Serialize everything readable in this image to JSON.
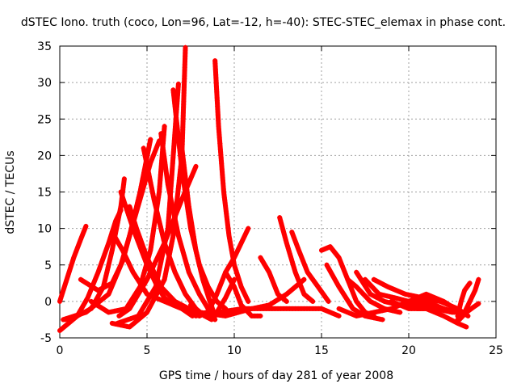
{
  "chart_data": {
    "type": "scatter",
    "title": "dSTEC Iono. truth (coco, Lon=96, Lat=-12, h=-40): STEC-STEC_elemax in phase cont.",
    "xlabel": "GPS time / hours of day 281 of year 2008",
    "ylabel": "dSTEC  / TECUs",
    "xlim": [
      0,
      25
    ],
    "ylim": [
      -5,
      35
    ],
    "xticks": [
      0,
      5,
      10,
      15,
      20,
      25
    ],
    "yticks": [
      -5,
      0,
      5,
      10,
      15,
      20,
      25,
      30,
      35
    ],
    "grid": true,
    "legend": "none",
    "marker": "plus",
    "color": "#ff0000",
    "series": [
      {
        "x": [
          0.0,
          0.4,
          0.8,
          1.2,
          1.5
        ],
        "y": [
          0.0,
          3.0,
          6.0,
          8.5,
          10.3
        ]
      },
      {
        "x": [
          0.0,
          0.5,
          1.0,
          1.6,
          2.2,
          2.8,
          3.2,
          3.5
        ],
        "y": [
          -4.0,
          -3.0,
          -2.0,
          0.5,
          4.0,
          8.0,
          11.0,
          12.5
        ]
      },
      {
        "x": [
          0.3,
          1.0,
          1.8,
          2.5,
          3.0,
          3.5,
          3.7
        ],
        "y": [
          -2.5,
          -2.0,
          -1.0,
          2.0,
          7.0,
          13.0,
          16.8
        ]
      },
      {
        "x": [
          0.2,
          1.5,
          2.8,
          3.5,
          4.0,
          4.6,
          5.2
        ],
        "y": [
          -2.5,
          -1.5,
          1.0,
          5.0,
          9.0,
          15.0,
          22.2
        ]
      },
      {
        "x": [
          1.2,
          2.2,
          3.0,
          3.6,
          4.0,
          4.6,
          5.2,
          5.7
        ],
        "y": [
          3.0,
          1.5,
          2.5,
          5.5,
          9.0,
          14.0,
          19.0,
          22.0
        ]
      },
      {
        "x": [
          1.8,
          2.8,
          3.8,
          4.6,
          5.2,
          5.7,
          6.0
        ],
        "y": [
          0.0,
          -1.5,
          -1.0,
          2.0,
          7.0,
          15.0,
          24.0
        ]
      },
      {
        "x": [
          3.0,
          4.0,
          5.0,
          6.0,
          6.5,
          7.0,
          7.2
        ],
        "y": [
          -3.0,
          -3.5,
          -1.5,
          3.0,
          9.0,
          20.0,
          34.8
        ]
      },
      {
        "x": [
          3.3,
          4.5,
          5.5,
          6.2,
          6.8
        ],
        "y": [
          -3.0,
          -2.0,
          2.0,
          10.0,
          29.8
        ]
      },
      {
        "x": [
          3.0,
          3.6,
          4.2,
          5.0,
          6.0,
          7.0,
          7.8,
          8.4
        ],
        "y": [
          9.5,
          7.0,
          4.0,
          1.0,
          0.0,
          -1.0,
          -2.0,
          -1.5
        ]
      },
      {
        "x": [
          3.5,
          4.2,
          5.0,
          5.6,
          6.0,
          6.5,
          7.0,
          7.6
        ],
        "y": [
          15.0,
          10.0,
          5.0,
          2.0,
          0.5,
          -0.5,
          -1.0,
          -2.0
        ]
      },
      {
        "x": [
          4.8,
          5.4,
          6.0,
          6.6,
          7.2,
          7.8,
          8.3,
          8.7
        ],
        "y": [
          21.0,
          14.0,
          8.0,
          4.0,
          1.0,
          -1.0,
          -2.0,
          -2.5
        ]
      },
      {
        "x": [
          5.8,
          6.2,
          6.8,
          7.4,
          8.0,
          8.5,
          8.9
        ],
        "y": [
          23.0,
          16.0,
          9.0,
          4.0,
          1.0,
          -1.0,
          -2.5
        ]
      },
      {
        "x": [
          6.5,
          7.0,
          7.5,
          8.0,
          8.5,
          9.0,
          9.5
        ],
        "y": [
          29.0,
          18.0,
          10.0,
          5.0,
          2.0,
          0.0,
          -1.0
        ]
      },
      {
        "x": [
          7.0,
          7.4,
          7.8,
          8.2,
          8.6,
          8.9
        ],
        "y": [
          21.0,
          13.0,
          7.0,
          3.0,
          0.0,
          -2.0
        ]
      },
      {
        "x": [
          4.0,
          4.4,
          5.0,
          5.8,
          6.6,
          7.4,
          8.0
        ],
        "y": [
          13.0,
          10.0,
          6.0,
          2.0,
          0.0,
          -1.0,
          -2.0
        ]
      },
      {
        "x": [
          3.4,
          4.0,
          5.0,
          6.0,
          7.0,
          7.8
        ],
        "y": [
          -2.0,
          -1.0,
          3.0,
          8.0,
          14.0,
          18.5
        ]
      },
      {
        "x": [
          8.0,
          8.5,
          9.0,
          9.5,
          10.0,
          10.8
        ],
        "y": [
          -2.0,
          -1.5,
          1.0,
          4.0,
          6.0,
          10.0
        ]
      },
      {
        "x": [
          8.9,
          9.1,
          9.4,
          9.7,
          10.0,
          10.4,
          10.8
        ],
        "y": [
          33.0,
          24.0,
          15.0,
          9.0,
          5.0,
          2.0,
          0.0
        ]
      },
      {
        "x": [
          7.5,
          8.0,
          8.5,
          9.0,
          9.5,
          10.0
        ],
        "y": [
          -0.5,
          -1.5,
          -2.0,
          -1.5,
          0.5,
          3.0
        ]
      },
      {
        "x": [
          8.0,
          9.5,
          11.0,
          12.0,
          13.0,
          14.0
        ],
        "y": [
          -1.5,
          -2.0,
          -1.0,
          -0.5,
          1.0,
          3.0
        ]
      },
      {
        "x": [
          9.0,
          10.5,
          12.0,
          13.5,
          15.0,
          16.0
        ],
        "y": [
          -1.5,
          -1.0,
          -1.0,
          -1.0,
          -1.0,
          -2.0
        ]
      },
      {
        "x": [
          9.5,
          10.0,
          10.4,
          11.0,
          11.5
        ],
        "y": [
          4.0,
          2.0,
          -0.5,
          -2.0,
          -2.0
        ]
      },
      {
        "x": [
          11.5,
          12.0,
          12.5,
          13.0
        ],
        "y": [
          6.0,
          4.0,
          1.0,
          0.0
        ]
      },
      {
        "x": [
          12.6,
          13.0,
          13.5,
          14.0,
          14.5
        ],
        "y": [
          11.5,
          8.0,
          4.0,
          1.0,
          0.0
        ]
      },
      {
        "x": [
          13.3,
          13.7,
          14.2,
          14.8,
          15.4
        ],
        "y": [
          9.5,
          7.0,
          4.0,
          2.0,
          0.0
        ]
      },
      {
        "x": [
          15.0,
          15.5,
          16.0,
          16.5,
          17.0,
          17.5,
          18.0
        ],
        "y": [
          7.0,
          7.5,
          6.0,
          3.0,
          0.0,
          -1.5,
          -2.0
        ]
      },
      {
        "x": [
          15.3,
          16.0,
          16.8,
          17.5,
          18.5
        ],
        "y": [
          5.0,
          2.0,
          -1.0,
          -2.0,
          -2.5
        ]
      },
      {
        "x": [
          16.5,
          17.0,
          17.8,
          18.6,
          19.5
        ],
        "y": [
          3.0,
          2.0,
          0.0,
          -1.0,
          -1.5
        ]
      },
      {
        "x": [
          17.0,
          17.8,
          18.6,
          19.5,
          20.5,
          21.5,
          22.5
        ],
        "y": [
          4.0,
          1.0,
          0.0,
          -0.5,
          -1.0,
          -1.0,
          -1.5
        ]
      },
      {
        "x": [
          17.5,
          18.3,
          19.2,
          20.0,
          21.0,
          22.0,
          22.8
        ],
        "y": [
          3.0,
          1.0,
          0.5,
          0.0,
          0.0,
          -1.0,
          -1.5
        ]
      },
      {
        "x": [
          18.0,
          18.8,
          19.8,
          20.8,
          21.8,
          22.8,
          23.4
        ],
        "y": [
          3.0,
          2.0,
          1.0,
          0.5,
          0.0,
          -1.0,
          -2.0
        ]
      },
      {
        "x": [
          16.0,
          17.0,
          18.0,
          19.0,
          20.0,
          21.0,
          22.0,
          23.0
        ],
        "y": [
          -1.0,
          -2.0,
          -1.5,
          -1.0,
          0.0,
          1.0,
          0.0,
          -1.5
        ]
      },
      {
        "x": [
          19.0,
          20.0,
          21.0,
          22.0,
          22.8,
          23.3
        ],
        "y": [
          0.0,
          -1.0,
          -1.0,
          -2.0,
          -3.0,
          -3.5
        ]
      },
      {
        "x": [
          22.8,
          23.0,
          23.2,
          23.5
        ],
        "y": [
          -2.0,
          0.0,
          1.5,
          2.5
        ]
      },
      {
        "x": [
          22.8,
          23.2,
          23.5,
          23.8,
          24.0
        ],
        "y": [
          -2.5,
          -1.5,
          0.0,
          1.5,
          3.0
        ]
      },
      {
        "x": [
          22.9,
          23.3,
          23.7,
          24.0
        ],
        "y": [
          -2.5,
          -1.5,
          -0.8,
          -0.3
        ]
      },
      {
        "x": [
          20.0,
          21.0,
          22.0,
          22.6
        ],
        "y": [
          -0.5,
          -0.5,
          -1.0,
          -1.5
        ]
      }
    ]
  }
}
